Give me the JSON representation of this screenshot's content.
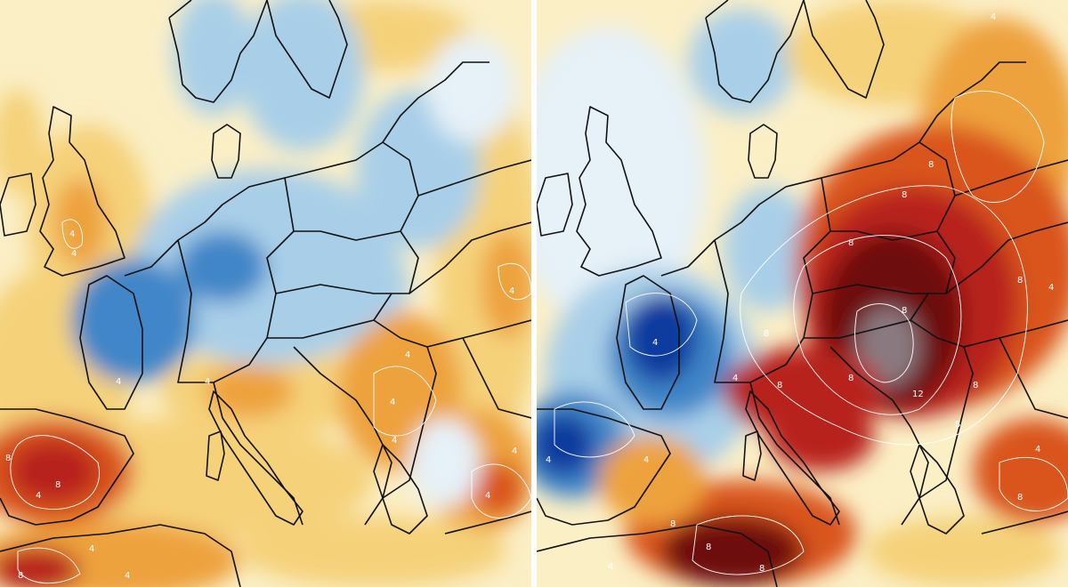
{
  "colors": {
    "deep_blue": "#0b3a9e",
    "mid_blue": "#3f86c8",
    "light_blue": "#a9cfe8",
    "pale_blue": "#e6f1f8",
    "pale_yellow": "#fbefc6",
    "yellow": "#f5d27a",
    "orange": "#eea23c",
    "red_orange": "#d9541f",
    "red": "#b8241a",
    "dark_red": "#6e0d0d",
    "gray_core": "#8a7a80",
    "border_line": "#111111",
    "contour_line": "#ffffff"
  },
  "panels": [
    {
      "id": "left",
      "contour_labels": [
        "4",
        "4",
        "8",
        "4",
        "4",
        "4",
        "4",
        "4",
        "4",
        "4",
        "8",
        "4",
        "4",
        "8",
        "4",
        "4"
      ]
    },
    {
      "id": "right",
      "contour_labels": [
        "4",
        "8",
        "8",
        "8",
        "8",
        "12",
        "4",
        "8",
        "8",
        "8",
        "4",
        "8",
        "8",
        "4",
        "4",
        "8",
        "8",
        "4",
        "4",
        "4",
        "8",
        "8",
        "8"
      ]
    }
  ]
}
